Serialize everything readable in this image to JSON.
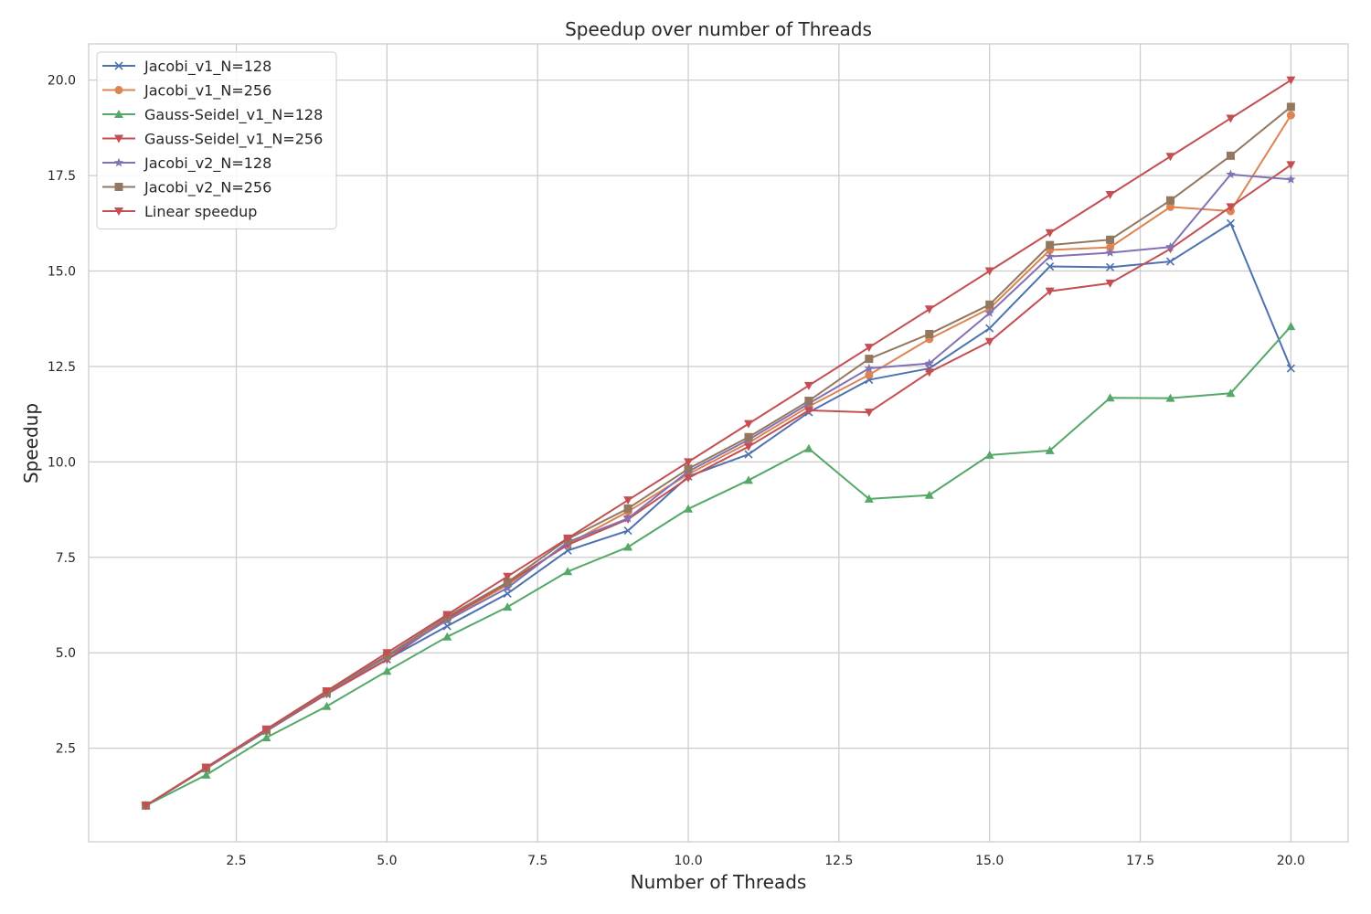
{
  "chart_data": {
    "type": "line",
    "title": "Speedup over number of Threads",
    "xlabel": "Number of Threads",
    "ylabel": "Speedup",
    "xlim": [
      0.05,
      20.95
    ],
    "ylim": [
      0.05,
      20.95
    ],
    "xticks": [
      "2.5",
      "5.0",
      "7.5",
      "10.0",
      "12.5",
      "15.0",
      "17.5",
      "20.0"
    ],
    "yticks": [
      "2.5",
      "5.0",
      "7.5",
      "10.0",
      "12.5",
      "15.0",
      "17.5",
      "20.0"
    ],
    "grid": true,
    "legend_position": "upper-left",
    "x": [
      1,
      2,
      3,
      4,
      5,
      6,
      7,
      8,
      9,
      10,
      11,
      12,
      13,
      14,
      15,
      16,
      17,
      18,
      19,
      20
    ],
    "series": [
      {
        "name": "Jacobi_v1_N=128",
        "color": "#4c72b0",
        "marker": "x",
        "values": [
          1.0,
          1.97,
          2.95,
          3.92,
          4.83,
          5.7,
          6.55,
          7.68,
          8.2,
          9.62,
          10.2,
          11.3,
          12.15,
          12.45,
          13.5,
          15.12,
          15.1,
          15.25,
          16.25,
          12.45
        ]
      },
      {
        "name": "Jacobi_v1_N=256",
        "color": "#dd8452",
        "marker": "circle",
        "values": [
          1.0,
          1.98,
          2.97,
          3.95,
          4.9,
          5.88,
          6.78,
          7.85,
          8.7,
          9.68,
          10.5,
          11.45,
          12.28,
          13.22,
          14.02,
          15.55,
          15.62,
          16.68,
          16.57,
          19.08
        ]
      },
      {
        "name": "Gauss-Seidel_v1_N=128",
        "color": "#55a868",
        "marker": "triangle-up",
        "values": [
          1.0,
          1.8,
          2.78,
          3.6,
          4.52,
          5.42,
          6.2,
          7.13,
          7.77,
          8.77,
          9.52,
          10.35,
          9.03,
          9.13,
          10.18,
          10.3,
          11.68,
          11.67,
          11.8,
          13.55
        ]
      },
      {
        "name": "Gauss-Seidel_v1_N=256",
        "color": "#c44e52",
        "marker": "triangle-down",
        "values": [
          1.0,
          1.98,
          2.96,
          3.92,
          4.82,
          5.9,
          6.83,
          7.83,
          8.5,
          9.58,
          10.4,
          11.35,
          11.3,
          12.35,
          13.15,
          14.47,
          14.68,
          15.58,
          16.68,
          17.78
        ]
      },
      {
        "name": "Jacobi_v2_N=128",
        "color": "#8172b3",
        "marker": "star",
        "values": [
          1.0,
          1.98,
          2.96,
          3.96,
          4.9,
          5.85,
          6.7,
          7.9,
          8.52,
          9.75,
          10.58,
          11.53,
          12.45,
          12.58,
          13.9,
          15.38,
          15.48,
          15.63,
          17.53,
          17.4
        ]
      },
      {
        "name": "Jacobi_v2_N=256",
        "color": "#937860",
        "marker": "square",
        "values": [
          1.0,
          1.98,
          2.97,
          3.97,
          4.93,
          5.95,
          6.85,
          7.98,
          8.78,
          9.82,
          10.65,
          11.6,
          12.7,
          13.35,
          14.12,
          15.68,
          15.82,
          16.85,
          18.02,
          19.3
        ]
      },
      {
        "name": "Linear speedup",
        "color": "#c44e52",
        "marker": "triangle-down",
        "values": [
          1,
          2,
          3,
          4,
          5,
          6,
          7,
          8,
          9,
          10,
          11,
          12,
          13,
          14,
          15,
          16,
          17,
          18,
          19,
          20
        ]
      }
    ]
  }
}
